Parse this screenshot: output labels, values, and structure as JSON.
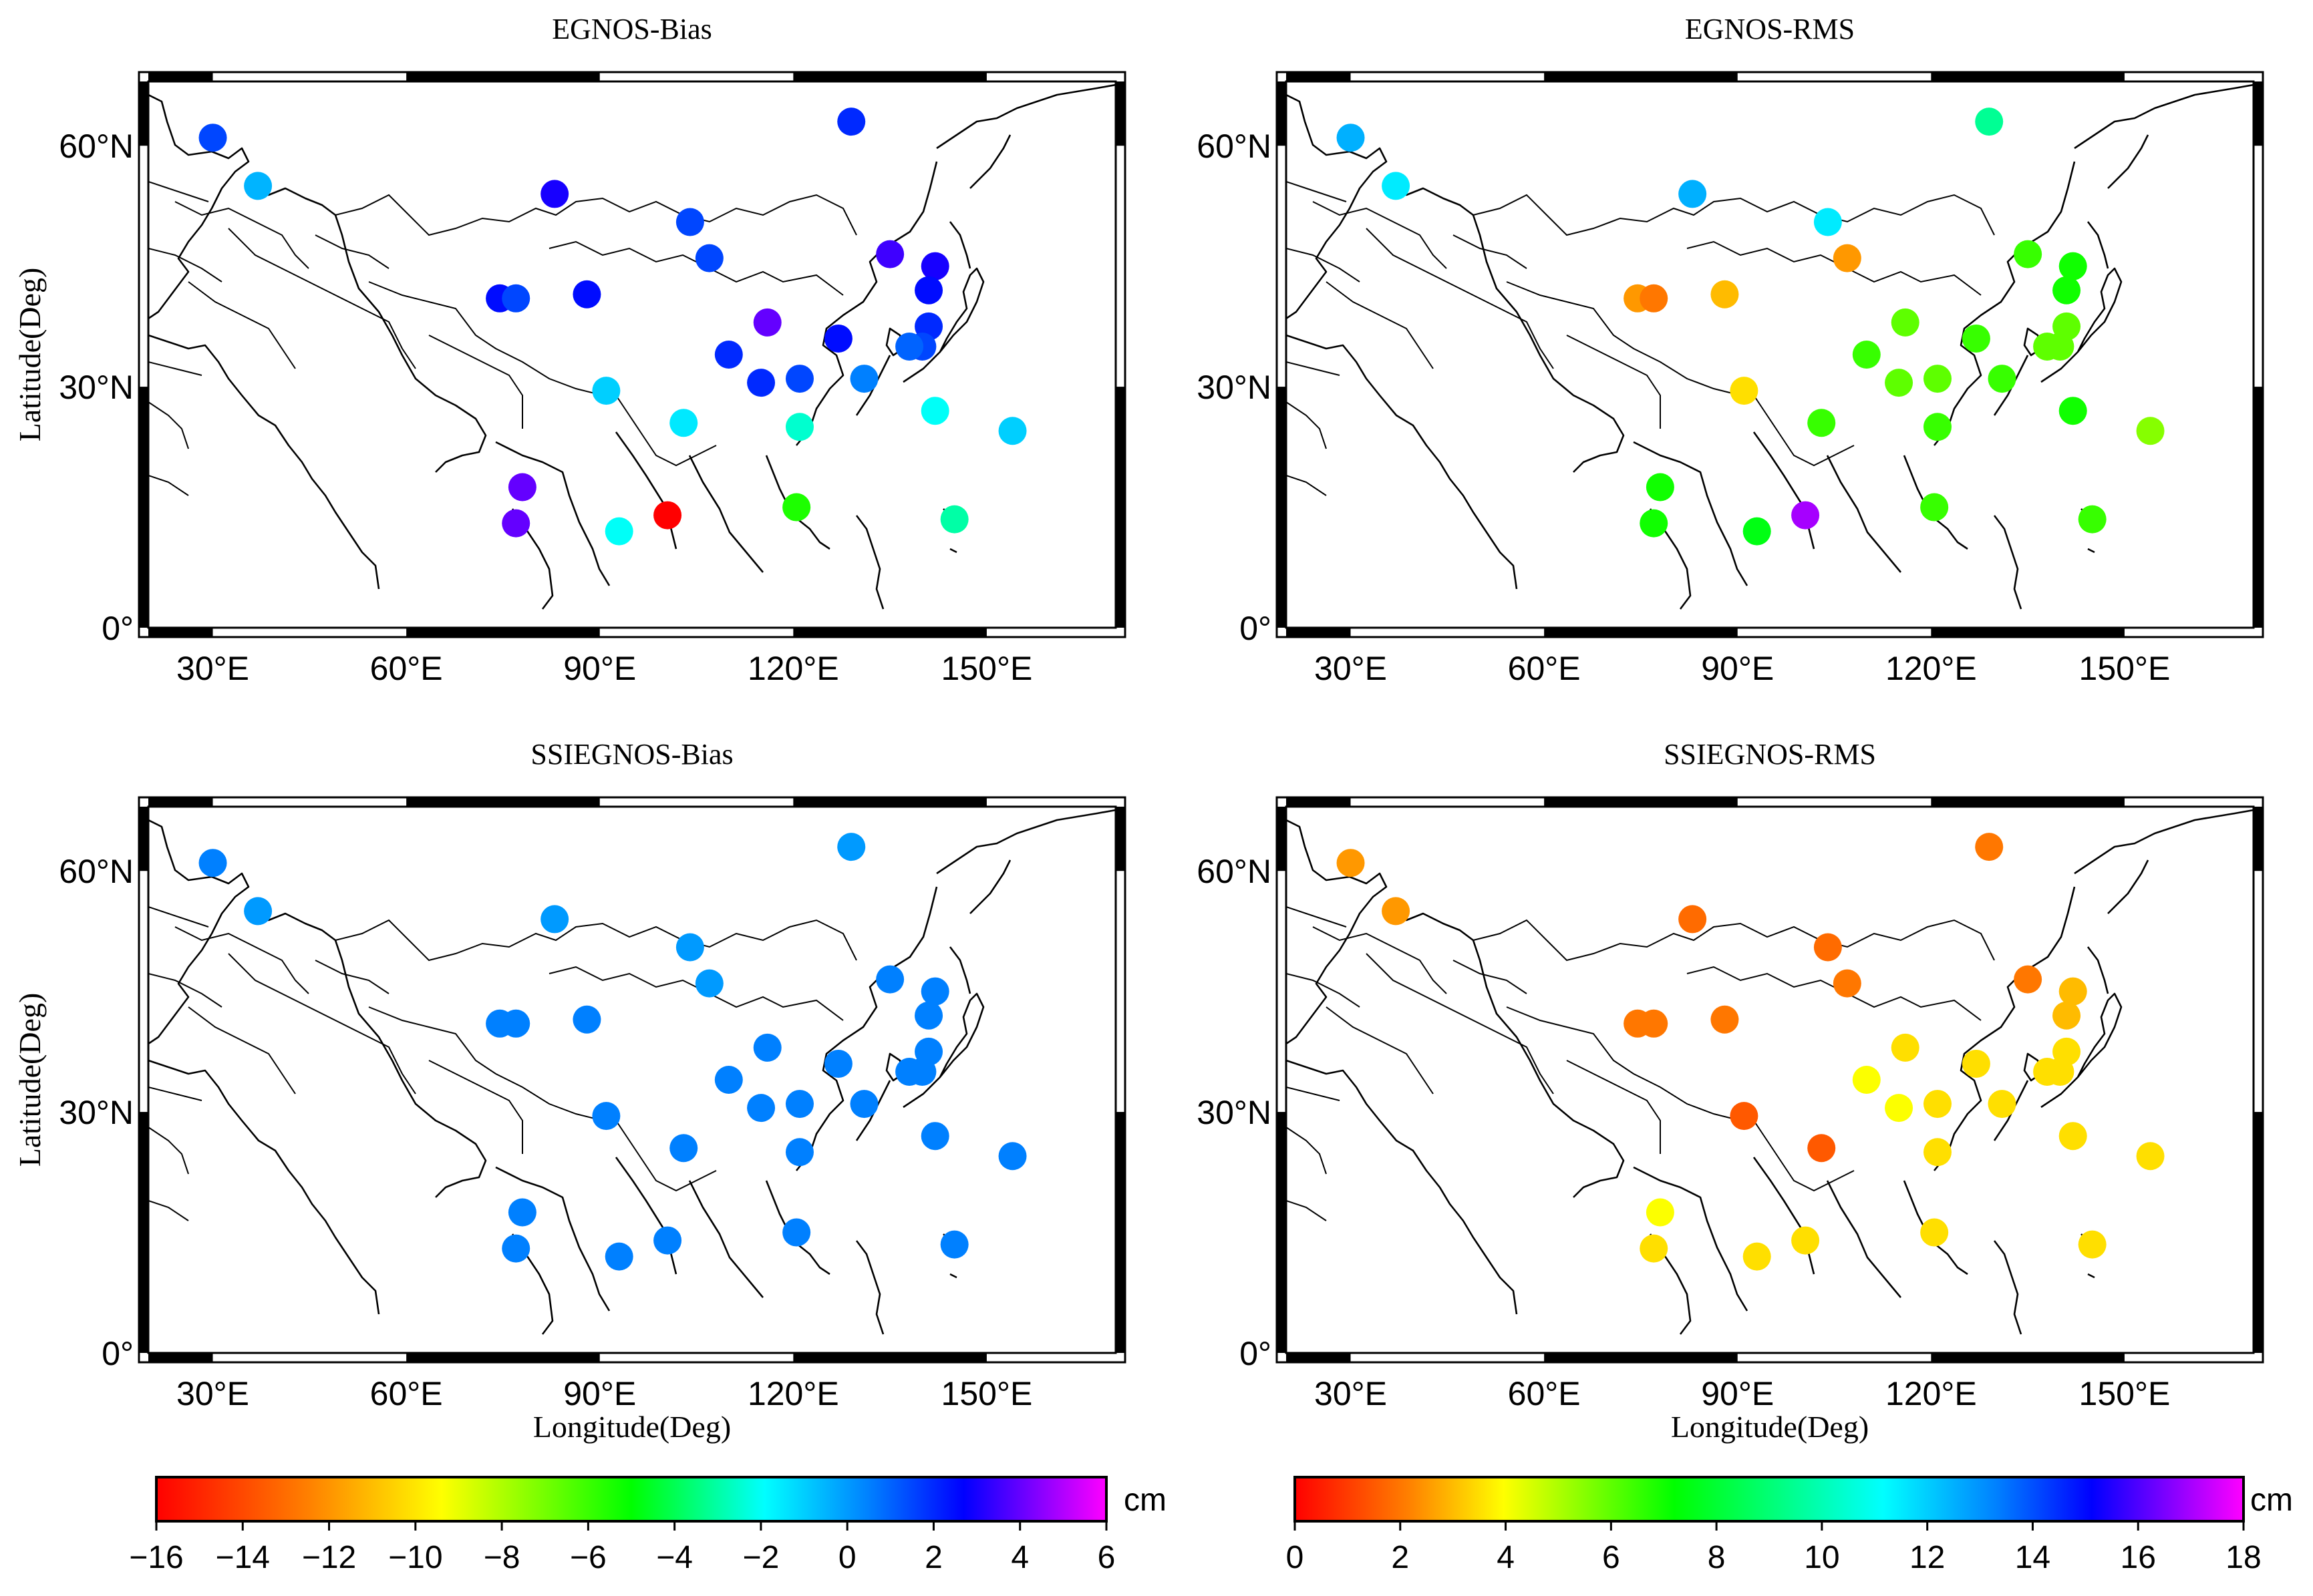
{
  "figure": {
    "panels": [
      {
        "title": "EGNOS-Bias",
        "scale": "bias"
      },
      {
        "title": "EGNOS-RMS",
        "scale": "rms"
      },
      {
        "title": "SSIEGNOS-Bias",
        "scale": "bias"
      },
      {
        "title": "SSIEGNOS-RMS",
        "scale": "rms"
      }
    ],
    "x_ticks": [
      "30°E",
      "60°E",
      "90°E",
      "120°E",
      "150°E"
    ],
    "y_ticks": [
      "60°N",
      "30°N",
      "0°"
    ],
    "x_label": "Longitude(Deg)",
    "y_label": "Latitude(Deg)",
    "colorbars": [
      {
        "name": "bias",
        "unit": "cm",
        "min": -16,
        "max": 6,
        "ticks": [
          "−16",
          "−14",
          "−12",
          "−10",
          "−8",
          "−6",
          "−4",
          "−2",
          "0",
          "2",
          "4",
          "6"
        ]
      },
      {
        "name": "rms",
        "unit": "cm",
        "min": 0,
        "max": 18,
        "ticks": [
          "0",
          "2",
          "4",
          "6",
          "8",
          "10",
          "12",
          "14",
          "16",
          "18"
        ]
      }
    ]
  },
  "chart_data": {
    "type": "scatter",
    "x_range_lon": [
      20,
      170
    ],
    "y_range_lat": [
      0,
      68
    ],
    "stations": [
      {
        "lon": 30,
        "lat": 61,
        "egnos_bias": 1.5,
        "egnos_rms": 12.5,
        "ssi_bias": 0.5,
        "ssi_rms": 2.5
      },
      {
        "lon": 37,
        "lat": 55,
        "egnos_bias": -0.5,
        "egnos_rms": 11.5,
        "ssi_bias": 0.0,
        "ssi_rms": 2.5
      },
      {
        "lon": 83,
        "lat": 54,
        "egnos_bias": 3.0,
        "egnos_rms": 12.5,
        "ssi_bias": 0.0,
        "ssi_rms": 1.8
      },
      {
        "lon": 104,
        "lat": 50.5,
        "egnos_bias": 1.5,
        "egnos_rms": 11.5,
        "ssi_bias": 0.0,
        "ssi_rms": 1.8
      },
      {
        "lon": 107,
        "lat": 46,
        "egnos_bias": 1.5,
        "egnos_rms": 2.5,
        "ssi_bias": 0.0,
        "ssi_rms": 2.0
      },
      {
        "lon": 129,
        "lat": 63,
        "egnos_bias": 2.0,
        "egnos_rms": 9.5,
        "ssi_bias": 0.0,
        "ssi_rms": 2.0
      },
      {
        "lon": 135,
        "lat": 46.5,
        "egnos_bias": 3.5,
        "egnos_rms": 6.5,
        "ssi_bias": 0.5,
        "ssi_rms": 2.0
      },
      {
        "lon": 142,
        "lat": 45,
        "egnos_bias": 3.0,
        "egnos_rms": 7.0,
        "ssi_bias": 0.5,
        "ssi_rms": 3.0
      },
      {
        "lon": 141,
        "lat": 42,
        "egnos_bias": 2.5,
        "egnos_rms": 7.0,
        "ssi_bias": 0.5,
        "ssi_rms": 3.0
      },
      {
        "lon": 74.5,
        "lat": 41,
        "egnos_bias": 2.5,
        "egnos_rms": 2.5,
        "ssi_bias": 0.5,
        "ssi_rms": 2.0
      },
      {
        "lon": 77,
        "lat": 41,
        "egnos_bias": 1.5,
        "egnos_rms": 2.0,
        "ssi_bias": 0.5,
        "ssi_rms": 2.0
      },
      {
        "lon": 88,
        "lat": 41.5,
        "egnos_bias": 2.5,
        "egnos_rms": 3.0,
        "ssi_bias": 0.5,
        "ssi_rms": 2.0
      },
      {
        "lon": 116,
        "lat": 38,
        "egnos_bias": 4.0,
        "egnos_rms": 6.0,
        "ssi_bias": 0.5,
        "ssi_rms": 3.5
      },
      {
        "lon": 141,
        "lat": 37.5,
        "egnos_bias": 2.0,
        "egnos_rms": 6.0,
        "ssi_bias": 0.5,
        "ssi_rms": 3.5
      },
      {
        "lon": 127,
        "lat": 36,
        "egnos_bias": 2.5,
        "egnos_rms": 6.5,
        "ssi_bias": 0.5,
        "ssi_rms": 3.5
      },
      {
        "lon": 140,
        "lat": 35,
        "egnos_bias": 1.5,
        "egnos_rms": 6.0,
        "ssi_bias": 0.5,
        "ssi_rms": 3.5
      },
      {
        "lon": 138,
        "lat": 35,
        "egnos_bias": 1.0,
        "egnos_rms": 6.0,
        "ssi_bias": 0.5,
        "ssi_rms": 3.5
      },
      {
        "lon": 110,
        "lat": 34,
        "egnos_bias": 2.0,
        "egnos_rms": 6.5,
        "ssi_bias": 0.5,
        "ssi_rms": 4.0
      },
      {
        "lon": 131,
        "lat": 31,
        "egnos_bias": 0.5,
        "egnos_rms": 6.5,
        "ssi_bias": 0.5,
        "ssi_rms": 3.5
      },
      {
        "lon": 121,
        "lat": 31,
        "egnos_bias": 1.5,
        "egnos_rms": 6.0,
        "ssi_bias": 0.5,
        "ssi_rms": 3.5
      },
      {
        "lon": 115,
        "lat": 30.5,
        "egnos_bias": 2.0,
        "egnos_rms": 6.0,
        "ssi_bias": 0.5,
        "ssi_rms": 4.0
      },
      {
        "lon": 91,
        "lat": 29.5,
        "egnos_bias": -1.0,
        "egnos_rms": 3.5,
        "ssi_bias": 0.5,
        "ssi_rms": 1.5
      },
      {
        "lon": 103,
        "lat": 25.5,
        "egnos_bias": -1.5,
        "egnos_rms": 6.5,
        "ssi_bias": 0.5,
        "ssi_rms": 1.5
      },
      {
        "lon": 121,
        "lat": 25,
        "egnos_bias": -2.5,
        "egnos_rms": 6.5,
        "ssi_bias": 0.5,
        "ssi_rms": 3.5
      },
      {
        "lon": 142,
        "lat": 27,
        "egnos_bias": -2.0,
        "egnos_rms": 7.0,
        "ssi_bias": 0.5,
        "ssi_rms": 3.5
      },
      {
        "lon": 154,
        "lat": 24.5,
        "egnos_bias": -1.0,
        "egnos_rms": 5.5,
        "ssi_bias": 0.5,
        "ssi_rms": 3.5
      },
      {
        "lon": 78,
        "lat": 17.5,
        "egnos_bias": 4.0,
        "egnos_rms": 7.0,
        "ssi_bias": 0.5,
        "ssi_rms": 4.0
      },
      {
        "lon": 77,
        "lat": 13,
        "egnos_bias": 4.0,
        "egnos_rms": 7.0,
        "ssi_bias": 0.5,
        "ssi_rms": 3.5
      },
      {
        "lon": 93,
        "lat": 12,
        "egnos_bias": -2.0,
        "egnos_rms": 7.5,
        "ssi_bias": 0.5,
        "ssi_rms": 3.5
      },
      {
        "lon": 100.5,
        "lat": 14,
        "egnos_bias": -16.0,
        "egnos_rms": 17.0,
        "ssi_bias": 0.5,
        "ssi_rms": 3.5
      },
      {
        "lon": 120.5,
        "lat": 15,
        "egnos_bias": -5.5,
        "egnos_rms": 6.5,
        "ssi_bias": 0.5,
        "ssi_rms": 3.5
      },
      {
        "lon": 145,
        "lat": 13.5,
        "egnos_bias": -3.0,
        "egnos_rms": 6.5,
        "ssi_bias": 0.5,
        "ssi_rms": 3.5
      }
    ]
  }
}
